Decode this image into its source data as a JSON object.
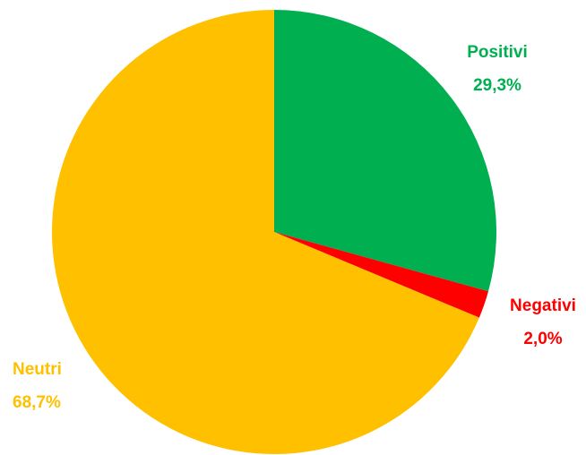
{
  "chart_data": {
    "type": "pie",
    "title": "",
    "slices": [
      {
        "name": "Positivi",
        "value": 29.3,
        "value_label": "29,3%",
        "color": "#00b050"
      },
      {
        "name": "Negativi",
        "value": 2.0,
        "value_label": "2,0%",
        "color": "#ff0000"
      },
      {
        "name": "Neutri",
        "value": 68.7,
        "value_label": "68,7%",
        "color": "#ffc000"
      }
    ],
    "start": "12 o'clock",
    "direction": "clockwise"
  }
}
